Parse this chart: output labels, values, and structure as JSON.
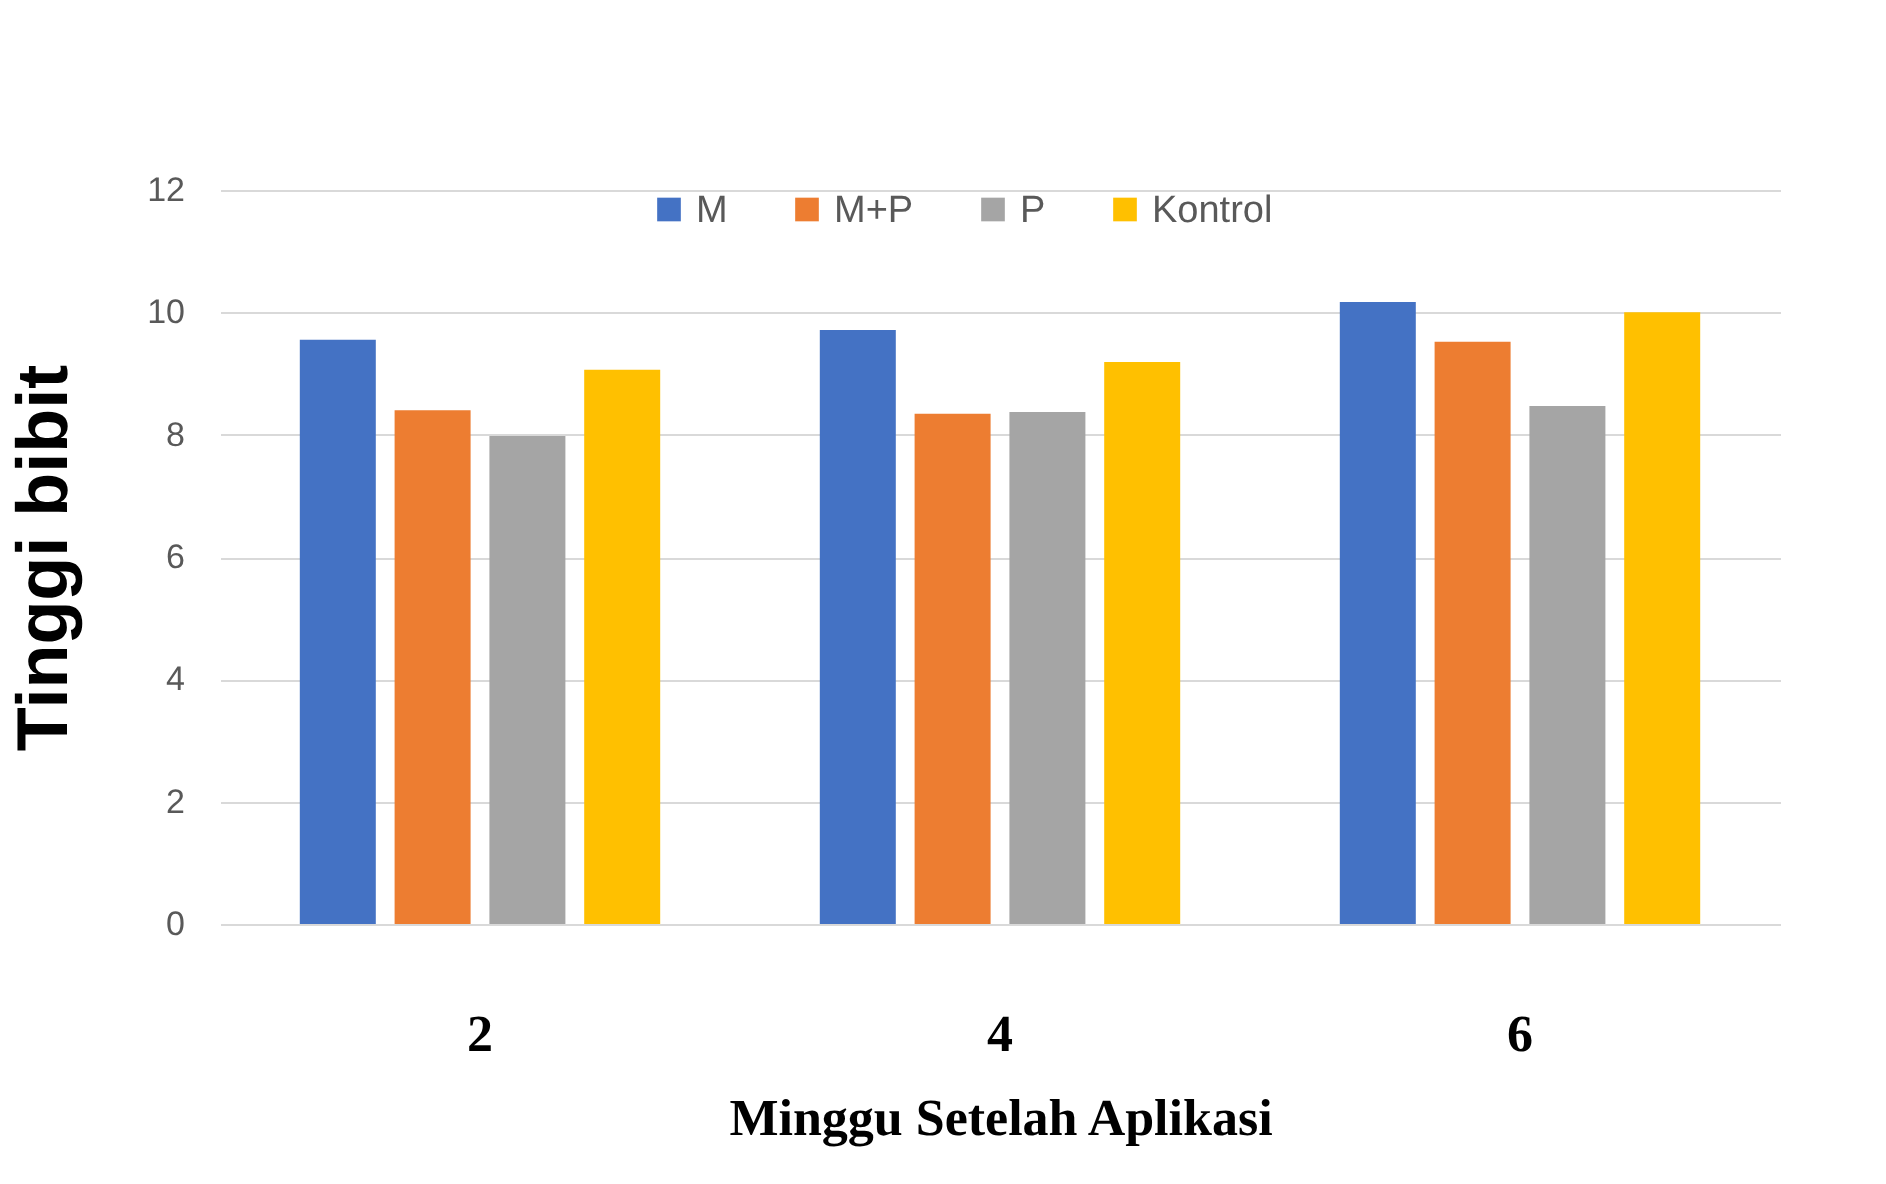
{
  "chart_data": {
    "type": "bar",
    "xlabel": "Minggu Setelah Aplikasi",
    "ylabel": "Tinggi bibit",
    "categories": [
      "2",
      "4",
      "6"
    ],
    "series": [
      {
        "name": "M",
        "color": "#4472c4",
        "values": [
          9.55,
          9.71,
          10.17
        ]
      },
      {
        "name": "M+P",
        "color": "#ed7d31",
        "values": [
          8.4,
          8.34,
          9.52
        ]
      },
      {
        "name": "P",
        "color": "#a5a5a5",
        "values": [
          7.98,
          8.37,
          8.47
        ]
      },
      {
        "name": "Kontrol",
        "color": "#ffc000",
        "values": [
          9.06,
          9.19,
          10.0
        ]
      }
    ],
    "ylim": [
      0,
      12
    ],
    "yticks": [
      0,
      2,
      4,
      6,
      8,
      10,
      12
    ],
    "grid": "y",
    "legend": "top"
  }
}
